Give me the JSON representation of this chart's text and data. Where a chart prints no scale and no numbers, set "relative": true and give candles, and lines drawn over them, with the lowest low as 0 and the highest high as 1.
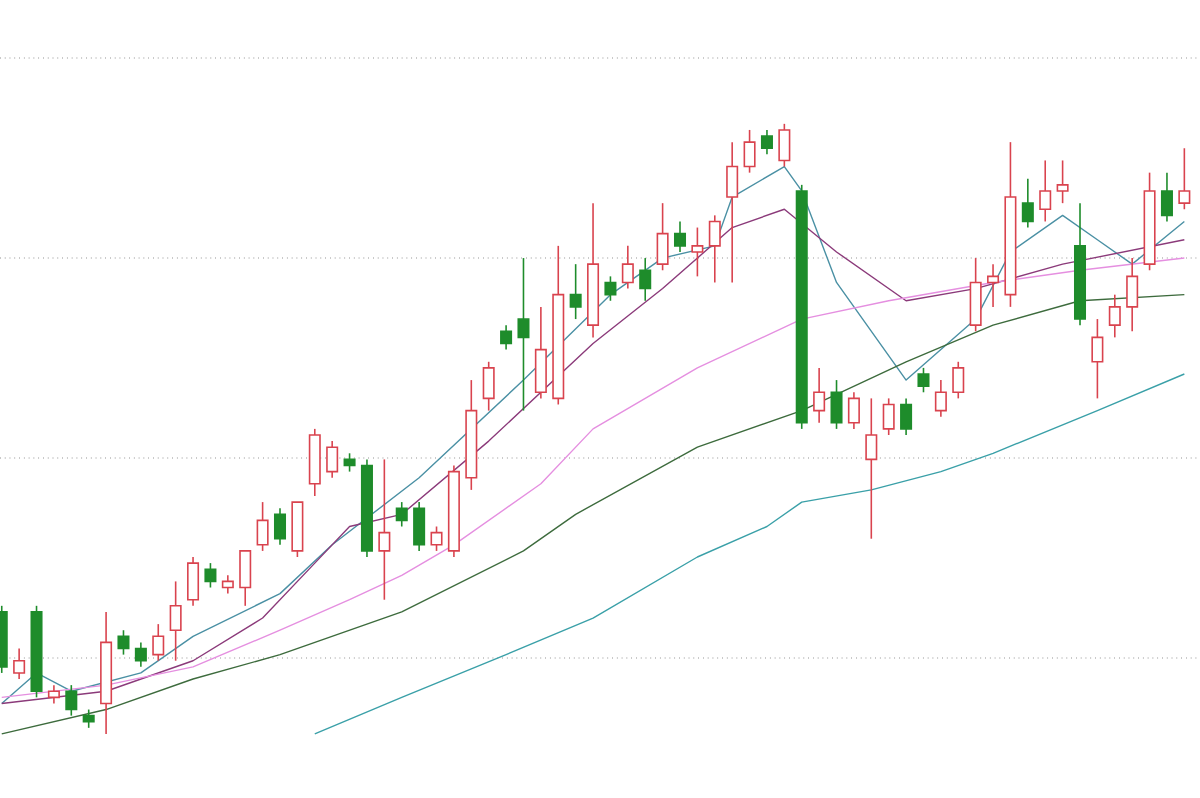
{
  "chart_data": {
    "type": "candlestick",
    "relative": true,
    "grid": true,
    "categories": [
      null,
      null,
      null,
      null,
      null,
      null,
      null,
      null,
      null,
      null,
      null,
      null,
      null,
      null,
      null,
      null,
      null,
      null,
      null,
      null,
      null,
      null,
      null,
      null,
      null,
      null,
      null,
      null,
      null,
      null,
      null,
      null,
      null,
      null,
      null,
      null,
      null,
      null,
      null,
      null,
      null,
      null,
      null,
      null,
      null,
      null,
      null,
      null,
      null,
      null,
      null,
      null,
      null,
      null,
      null,
      null,
      null,
      null,
      null,
      null,
      null,
      null,
      null,
      null,
      null,
      null,
      null,
      null,
      null
    ],
    "ohlc": [
      [
        0.2,
        0.21,
        0.1,
        0.11
      ],
      [
        0.1,
        0.14,
        0.09,
        0.12
      ],
      [
        0.2,
        0.21,
        0.06,
        0.07
      ],
      [
        0.06,
        0.08,
        0.05,
        0.07
      ],
      [
        0.07,
        0.08,
        0.03,
        0.04
      ],
      [
        0.03,
        0.04,
        0.01,
        0.02
      ],
      [
        0.05,
        0.2,
        0.0,
        0.15
      ],
      [
        0.16,
        0.17,
        0.13,
        0.14
      ],
      [
        0.14,
        0.15,
        0.11,
        0.12
      ],
      [
        0.13,
        0.18,
        0.12,
        0.16
      ],
      [
        0.17,
        0.25,
        0.12,
        0.21
      ],
      [
        0.22,
        0.29,
        0.21,
        0.28
      ],
      [
        0.27,
        0.28,
        0.24,
        0.25
      ],
      [
        0.24,
        0.26,
        0.23,
        0.25
      ],
      [
        0.24,
        0.3,
        0.21,
        0.3
      ],
      [
        0.31,
        0.38,
        0.3,
        0.35
      ],
      [
        0.36,
        0.37,
        0.31,
        0.32
      ],
      [
        0.3,
        0.38,
        0.29,
        0.38
      ],
      [
        0.41,
        0.5,
        0.39,
        0.49
      ],
      [
        0.43,
        0.48,
        0.42,
        0.47
      ],
      [
        0.45,
        0.46,
        0.43,
        0.44
      ],
      [
        0.44,
        0.45,
        0.29,
        0.3
      ],
      [
        0.3,
        0.45,
        0.22,
        0.33
      ],
      [
        0.37,
        0.38,
        0.34,
        0.35
      ],
      [
        0.37,
        0.38,
        0.3,
        0.31
      ],
      [
        0.31,
        0.34,
        0.3,
        0.33
      ],
      [
        0.3,
        0.44,
        0.29,
        0.43
      ],
      [
        0.42,
        0.58,
        0.4,
        0.53
      ],
      [
        0.55,
        0.61,
        0.53,
        0.6
      ],
      [
        0.66,
        0.67,
        0.63,
        0.64
      ],
      [
        0.68,
        0.78,
        0.53,
        0.65
      ],
      [
        0.56,
        0.7,
        0.55,
        0.63
      ],
      [
        0.55,
        0.8,
        0.54,
        0.72
      ],
      [
        0.72,
        0.77,
        0.68,
        0.7
      ],
      [
        0.67,
        0.87,
        0.65,
        0.77
      ],
      [
        0.74,
        0.75,
        0.71,
        0.72
      ],
      [
        0.74,
        0.8,
        0.73,
        0.77
      ],
      [
        0.76,
        0.78,
        0.71,
        0.73
      ],
      [
        0.77,
        0.87,
        0.76,
        0.82
      ],
      [
        0.82,
        0.84,
        0.79,
        0.8
      ],
      [
        0.79,
        0.83,
        0.75,
        0.8
      ],
      [
        0.8,
        0.85,
        0.74,
        0.84
      ],
      [
        0.88,
        0.97,
        0.74,
        0.93
      ],
      [
        0.93,
        0.99,
        0.92,
        0.97
      ],
      [
        0.98,
        0.99,
        0.95,
        0.96
      ],
      [
        0.94,
        1.0,
        0.93,
        0.99
      ],
      [
        0.89,
        0.9,
        0.5,
        0.51
      ],
      [
        0.53,
        0.6,
        0.51,
        0.56
      ],
      [
        0.56,
        0.58,
        0.5,
        0.51
      ],
      [
        0.51,
        0.56,
        0.5,
        0.55
      ],
      [
        0.45,
        0.55,
        0.32,
        0.49
      ],
      [
        0.5,
        0.55,
        0.49,
        0.54
      ],
      [
        0.54,
        0.55,
        0.49,
        0.5
      ],
      [
        0.59,
        0.6,
        0.56,
        0.57
      ],
      [
        0.53,
        0.58,
        0.52,
        0.56
      ],
      [
        0.56,
        0.61,
        0.55,
        0.6
      ],
      [
        0.67,
        0.78,
        0.66,
        0.74
      ],
      [
        0.74,
        0.77,
        0.7,
        0.75
      ],
      [
        0.72,
        0.97,
        0.7,
        0.88
      ],
      [
        0.87,
        0.91,
        0.83,
        0.84
      ],
      [
        0.86,
        0.94,
        0.84,
        0.89
      ],
      [
        0.89,
        0.94,
        0.87,
        0.9
      ],
      [
        0.8,
        0.87,
        0.67,
        0.68
      ],
      [
        0.61,
        0.68,
        0.55,
        0.65
      ],
      [
        0.67,
        0.72,
        0.65,
        0.7
      ],
      [
        0.7,
        0.78,
        0.66,
        0.75
      ],
      [
        0.77,
        0.92,
        0.76,
        0.89
      ],
      [
        0.89,
        0.92,
        0.84,
        0.85
      ],
      [
        0.87,
        0.96,
        0.86,
        0.89
      ]
    ],
    "colors": [
      "#1e8c2b",
      "#d9434e",
      "#1e8c2b",
      "#d9434e",
      "#1e8c2b",
      "#1e8c2b",
      "#d9434e",
      "#1e8c2b",
      "#1e8c2b",
      "#d9434e",
      "#d9434e",
      "#d9434e",
      "#1e8c2b",
      "#d9434e",
      "#d9434e",
      "#d9434e",
      "#1e8c2b",
      "#d9434e",
      "#d9434e",
      "#d9434e",
      "#1e8c2b",
      "#1e8c2b",
      "#d9434e",
      "#1e8c2b",
      "#1e8c2b",
      "#d9434e",
      "#d9434e",
      "#d9434e",
      "#d9434e",
      "#1e8c2b",
      "#1e8c2b",
      "#d9434e",
      "#d9434e",
      "#1e8c2b",
      "#d9434e",
      "#1e8c2b",
      "#d9434e",
      "#1e8c2b",
      "#d9434e",
      "#1e8c2b",
      "#d9434e",
      "#d9434e",
      "#d9434e",
      "#d9434e",
      "#1e8c2b",
      "#d9434e",
      "#1e8c2b",
      "#d9434e",
      "#1e8c2b",
      "#d9434e",
      "#d9434e",
      "#d9434e",
      "#1e8c2b",
      "#1e8c2b",
      "#d9434e",
      "#d9434e",
      "#d9434e",
      "#d9434e",
      "#d9434e",
      "#1e8c2b",
      "#d9434e",
      "#d9434e",
      "#1e8c2b",
      "#d9434e",
      "#d9434e",
      "#d9434e",
      "#d9434e",
      "#1e8c2b",
      "#d9434e"
    ],
    "series": [
      {
        "type": "line",
        "color": "#4a90a4",
        "values": [
          0.05,
          null,
          0.1,
          null,
          0.07,
          null,
          null,
          null,
          0.1,
          null,
          null,
          0.16,
          null,
          null,
          null,
          null,
          0.23,
          null,
          null,
          0.31,
          null,
          null,
          null,
          null,
          0.42,
          null,
          null,
          null,
          null,
          null,
          0.58,
          null,
          null,
          null,
          null,
          0.72,
          null,
          null,
          0.78,
          null,
          null,
          0.8,
          0.88,
          null,
          null,
          0.93,
          0.89,
          null,
          0.74,
          null,
          null,
          null,
          0.58,
          null,
          null,
          null,
          0.68,
          null,
          0.79,
          null,
          null,
          0.85,
          null,
          0.81,
          null,
          0.77,
          null,
          null,
          0.84
        ]
      },
      {
        "type": "line",
        "color": "#8b3a7a",
        "values": [
          0.05,
          null,
          null,
          null,
          null,
          null,
          0.07,
          null,
          null,
          null,
          null,
          0.12,
          null,
          null,
          null,
          0.19,
          null,
          null,
          0.28,
          null,
          0.34,
          null,
          null,
          0.36,
          null,
          null,
          null,
          null,
          0.48,
          null,
          null,
          null,
          null,
          null,
          0.64,
          null,
          null,
          null,
          0.73,
          null,
          null,
          null,
          0.83,
          null,
          null,
          0.86,
          null,
          null,
          0.79,
          null,
          null,
          null,
          0.71,
          null,
          null,
          null,
          0.73,
          null,
          null,
          null,
          null,
          0.77,
          null,
          null,
          null,
          null,
          null,
          null,
          0.81
        ]
      },
      {
        "type": "line",
        "color": "#e58fe0",
        "values": [
          0.06,
          null,
          null,
          null,
          null,
          null,
          0.08,
          null,
          null,
          null,
          null,
          0.11,
          null,
          null,
          null,
          null,
          0.17,
          null,
          null,
          null,
          0.22,
          null,
          null,
          0.26,
          null,
          null,
          0.31,
          null,
          null,
          null,
          null,
          0.41,
          null,
          null,
          0.5,
          null,
          null,
          null,
          null,
          null,
          0.6,
          null,
          null,
          null,
          null,
          null,
          0.68,
          null,
          null,
          null,
          null,
          0.71,
          null,
          null,
          null,
          null,
          null,
          0.74,
          null,
          null,
          null,
          null,
          0.76,
          null,
          null,
          null,
          null,
          null,
          0.78
        ]
      },
      {
        "type": "line",
        "color": "#3d6b3d",
        "values": [
          0.0,
          null,
          null,
          null,
          null,
          null,
          0.04,
          null,
          null,
          null,
          null,
          0.09,
          null,
          null,
          null,
          null,
          0.13,
          null,
          null,
          null,
          null,
          null,
          null,
          0.2,
          null,
          null,
          null,
          null,
          null,
          null,
          0.3,
          null,
          null,
          0.36,
          null,
          null,
          null,
          null,
          null,
          null,
          0.47,
          null,
          null,
          null,
          null,
          null,
          0.53,
          null,
          null,
          null,
          null,
          null,
          0.61,
          null,
          null,
          null,
          null,
          0.67,
          null,
          null,
          null,
          null,
          0.71,
          null,
          null,
          null,
          null,
          null,
          0.72
        ]
      },
      {
        "type": "line",
        "color": "#3aa0a8",
        "values": [
          null,
          null,
          null,
          null,
          null,
          null,
          null,
          null,
          null,
          null,
          null,
          null,
          null,
          null,
          null,
          null,
          null,
          null,
          0.0,
          null,
          null,
          null,
          null,
          0.06,
          null,
          null,
          null,
          null,
          null,
          0.13,
          null,
          null,
          null,
          null,
          0.19,
          null,
          null,
          null,
          null,
          null,
          0.29,
          null,
          null,
          null,
          0.34,
          null,
          0.38,
          null,
          null,
          null,
          0.4,
          null,
          null,
          null,
          0.43,
          null,
          null,
          0.46,
          null,
          null,
          null,
          null,
          null,
          0.53,
          null,
          null,
          null,
          null,
          0.59
        ]
      }
    ]
  }
}
